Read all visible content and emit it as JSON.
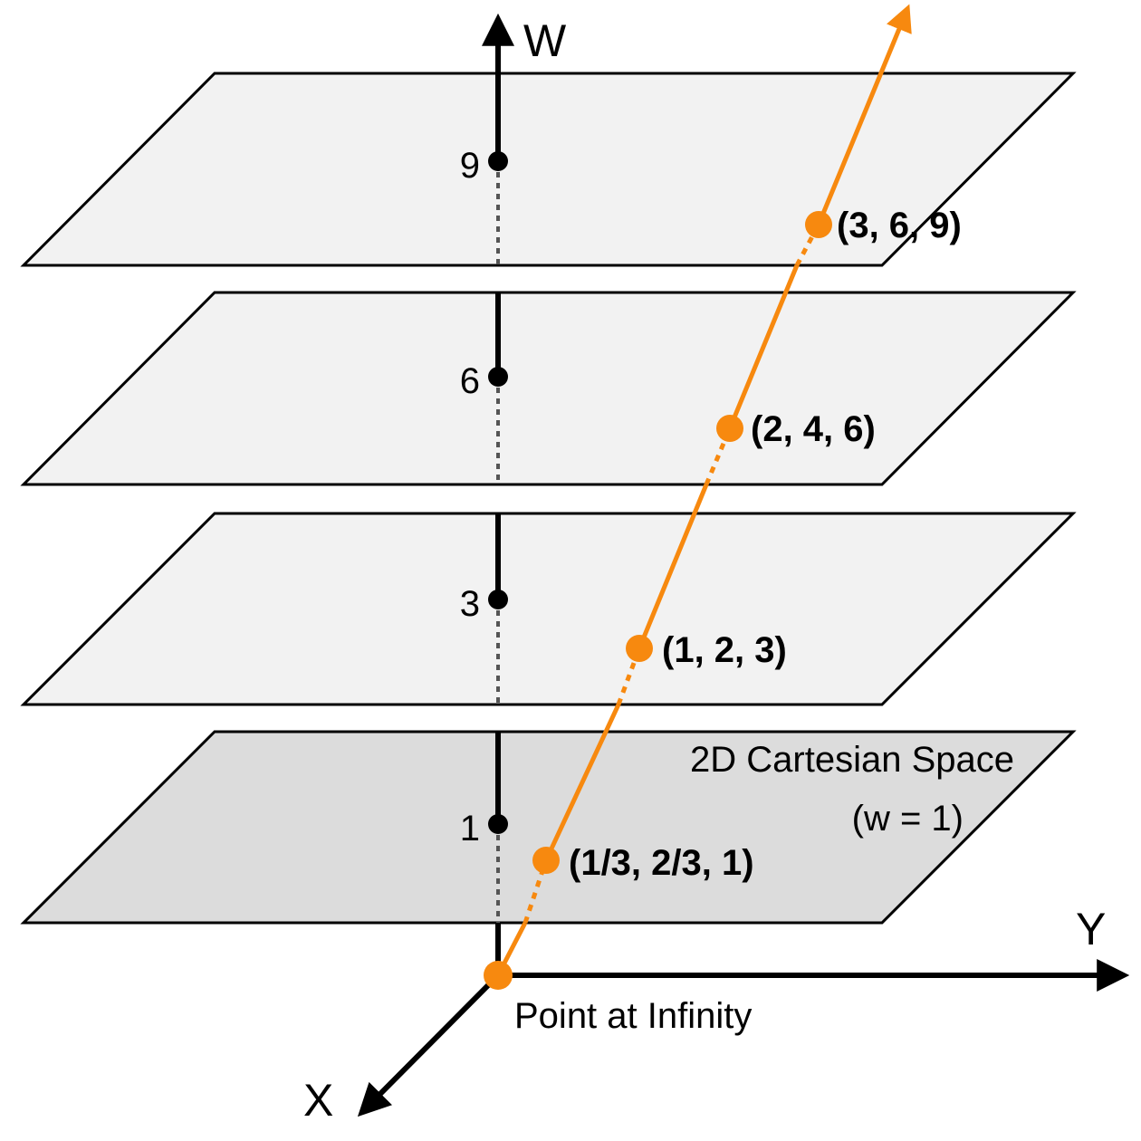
{
  "axes": {
    "w_label": "W",
    "x_label": "X",
    "y_label": "Y"
  },
  "w_ticks": [
    "9",
    "6",
    "3",
    "1"
  ],
  "points": [
    {
      "label": "(3, 6, 9)"
    },
    {
      "label": "(2, 4, 6)"
    },
    {
      "label": "(1, 2, 3)"
    },
    {
      "label": "(1/3, 2/3, 1)"
    }
  ],
  "planes": {
    "base_title": "2D Cartesian Space",
    "base_subtitle": "(w = 1)"
  },
  "origin_label": "Point at Infinity",
  "colors": {
    "ray": "#f7890f",
    "plane_fill": "#f2f2f2",
    "base_plane_fill": "#dcdcdc",
    "outline": "#000000"
  }
}
